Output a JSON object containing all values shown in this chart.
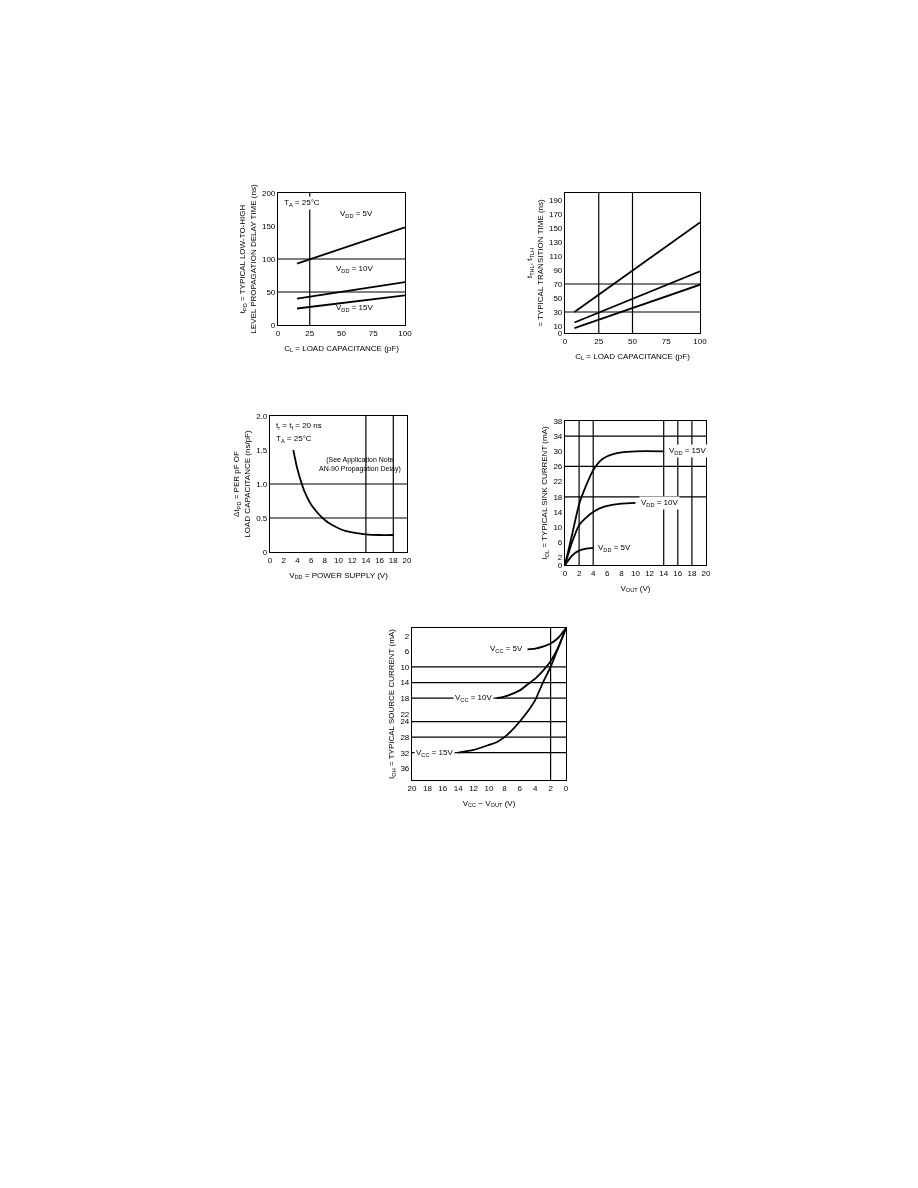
{
  "chart_data": [
    {
      "type": "line",
      "xlabel": "C$_{L}$ = LOAD CAPACITANCE (pF)",
      "ylabel": "t$_{PD}$ = TYPICAL LOW-TO-HIGH LEVEL PROPAGATION DELAY TIME (ns)",
      "annotations": [
        "T$_{A}$ = 25°C"
      ],
      "xlim": [
        0,
        100
      ],
      "xticks": [
        0,
        25,
        50,
        75,
        100
      ],
      "ylim": [
        0,
        200
      ],
      "yticks": [
        0,
        50,
        100,
        150,
        200
      ],
      "ref_lines": [
        {
          "axis": "y",
          "value": 50
        },
        {
          "axis": "y",
          "value": 100
        },
        {
          "axis": "x",
          "value": 25
        }
      ],
      "series": [
        {
          "name": "V$_{DD}$ = 5V",
          "color": "#000000",
          "x": [
            15,
            100
          ],
          "values": [
            93,
            148
          ]
        },
        {
          "name": "V$_{DD}$ = 10V",
          "color": "#000000",
          "x": [
            15,
            100
          ],
          "values": [
            40,
            65
          ]
        },
        {
          "name": "V$_{DD}$ = 15V",
          "color": "#000000",
          "x": [
            15,
            100
          ],
          "values": [
            25,
            45
          ]
        }
      ]
    },
    {
      "type": "line",
      "xlabel": "C$_{L}$ = LOAD CAPACITANCE (pF)",
      "ylabel": "t$_{THL}$, t$_{TLH}$ = TYPICAL TRANSITION TIME (ns)",
      "xlim": [
        0,
        100
      ],
      "xticks": [
        0,
        25,
        50,
        75,
        100
      ],
      "ylim": [
        0,
        200
      ],
      "yticks": [
        0,
        10,
        30,
        50,
        70,
        90,
        110,
        130,
        150,
        170,
        190
      ],
      "ref_lines": [
        {
          "axis": "y",
          "value": 30
        },
        {
          "axis": "y",
          "value": 70
        },
        {
          "axis": "x",
          "value": 25
        },
        {
          "axis": "x",
          "value": 50
        }
      ],
      "series": [
        {
          "color": "#000000",
          "x": [
            7,
            100
          ],
          "values": [
            30,
            158
          ]
        },
        {
          "color": "#000000",
          "x": [
            7,
            100
          ],
          "values": [
            15,
            88
          ]
        },
        {
          "color": "#000000",
          "x": [
            7,
            100
          ],
          "values": [
            7,
            69
          ]
        }
      ]
    },
    {
      "type": "line",
      "xlabel": "V$_{DD}$ = POWER SUPPLY (V)",
      "ylabel": "Δt$_{PD}$ = PER pF OF LOAD CAPACITANCE (ns/pF)",
      "annotations": [
        "t$_{r}$ = t$_{f}$ = 20 ns",
        "T$_{A}$ = 25°C",
        "(See Application Note AN-90 Propagation Delay)"
      ],
      "xlim": [
        0,
        20
      ],
      "xticks": [
        0,
        2,
        4,
        6,
        8,
        10,
        12,
        14,
        16,
        18,
        20
      ],
      "ylim": [
        0,
        2.0
      ],
      "yticks": [
        0,
        {
          "value": 0.5,
          "label": "0.5"
        },
        {
          "value": 1.0,
          "label": "1.0"
        },
        {
          "value": 1.5,
          "label": "1.5"
        },
        {
          "value": 2.0,
          "label": "2.0"
        }
      ],
      "ref_lines": [
        {
          "axis": "y",
          "value": 0.5
        },
        {
          "axis": "y",
          "value": 1.0
        },
        {
          "axis": "x",
          "value": 14
        },
        {
          "axis": "x",
          "value": 18
        }
      ],
      "series": [
        {
          "color": "#000000",
          "x": [
            3.4,
            4,
            5,
            6,
            7,
            8,
            9,
            10,
            11,
            12,
            14,
            16,
            18
          ],
          "values": [
            1.5,
            1.22,
            0.9,
            0.7,
            0.57,
            0.47,
            0.4,
            0.35,
            0.31,
            0.29,
            0.26,
            0.25,
            0.25
          ]
        }
      ]
    },
    {
      "type": "line",
      "xlabel": "V$_{OUT}$ (V)",
      "ylabel": "I$_{OL}$ = TYPICAL SINK CURRENT (mA)",
      "xlim": [
        0,
        20
      ],
      "xticks": [
        0,
        2,
        4,
        6,
        8,
        10,
        12,
        14,
        16,
        18,
        20
      ],
      "ylim": [
        0,
        38
      ],
      "yticks": [
        0,
        2,
        6,
        10,
        14,
        18,
        22,
        26,
        30,
        34,
        38
      ],
      "ref_lines": [
        {
          "axis": "y",
          "value": 18
        },
        {
          "axis": "y",
          "value": 26
        },
        {
          "axis": "y",
          "value": 34
        },
        {
          "axis": "x",
          "value": 2
        },
        {
          "axis": "x",
          "value": 4
        },
        {
          "axis": "x",
          "value": 14
        },
        {
          "axis": "x",
          "value": 16
        },
        {
          "axis": "x",
          "value": 18
        }
      ],
      "series": [
        {
          "name": "V$_{DD}$ = 15V",
          "color": "#000000",
          "x": [
            0,
            1,
            2,
            3,
            4,
            5,
            6,
            8,
            10,
            14
          ],
          "values": [
            0,
            8,
            16,
            21,
            25,
            27.5,
            28.7,
            29.7,
            30,
            30
          ]
        },
        {
          "name": "V$_{DD}$ = 10V",
          "color": "#000000",
          "x": [
            0,
            1,
            2,
            3,
            4,
            5,
            6,
            8,
            10
          ],
          "values": [
            0,
            6,
            10.5,
            12.5,
            14,
            15,
            15.6,
            16.2,
            16.4
          ]
        },
        {
          "name": "V$_{DD}$ = 5V",
          "color": "#000000",
          "x": [
            0,
            1,
            2,
            3,
            4
          ],
          "values": [
            0,
            2.5,
            3.8,
            4.3,
            4.5
          ]
        }
      ]
    },
    {
      "type": "line",
      "xlabel": "V$_{CC}$ − V$_{OUT}$ (V)",
      "ylabel": "I$_{OH}$ = TYPICAL SOURCE CURRENT (mA)",
      "xlim": [
        20,
        0
      ],
      "xticks": [
        20,
        18,
        16,
        14,
        12,
        10,
        8,
        6,
        4,
        2,
        0
      ],
      "ylim": [
        39,
        0
      ],
      "yticks": [
        2,
        6,
        10,
        14,
        18,
        22,
        24,
        28,
        32,
        36
      ],
      "ref_lines": [
        {
          "axis": "y",
          "value": 10
        },
        {
          "axis": "y",
          "value": 14
        },
        {
          "axis": "y",
          "value": 18
        },
        {
          "axis": "y",
          "value": 24
        },
        {
          "axis": "y",
          "value": 28
        },
        {
          "axis": "y",
          "value": 32
        },
        {
          "axis": "x",
          "value": 2
        }
      ],
      "series": [
        {
          "name": "V$_{CC}$ = 5V",
          "color": "#000000",
          "x": [
            0,
            1,
            2,
            3,
            4,
            5
          ],
          "values": [
            0,
            2.5,
            4,
            4.8,
            5.3,
            5.5
          ]
        },
        {
          "name": "V$_{CC}$ = 10V",
          "color": "#000000",
          "x": [
            0,
            1,
            2,
            3,
            4,
            5,
            6,
            8,
            9
          ],
          "values": [
            0,
            5,
            8.5,
            11,
            13,
            14.5,
            16,
            17.6,
            18
          ]
        },
        {
          "name": "V$_{CC}$ = 15V",
          "color": "#000000",
          "x": [
            0,
            1,
            2,
            3,
            4,
            5,
            6,
            7,
            8,
            9,
            10,
            12,
            14
          ],
          "values": [
            0,
            5,
            10,
            14,
            18.5,
            21.5,
            24,
            26.2,
            28,
            29.3,
            30,
            31.3,
            32
          ]
        }
      ]
    }
  ]
}
